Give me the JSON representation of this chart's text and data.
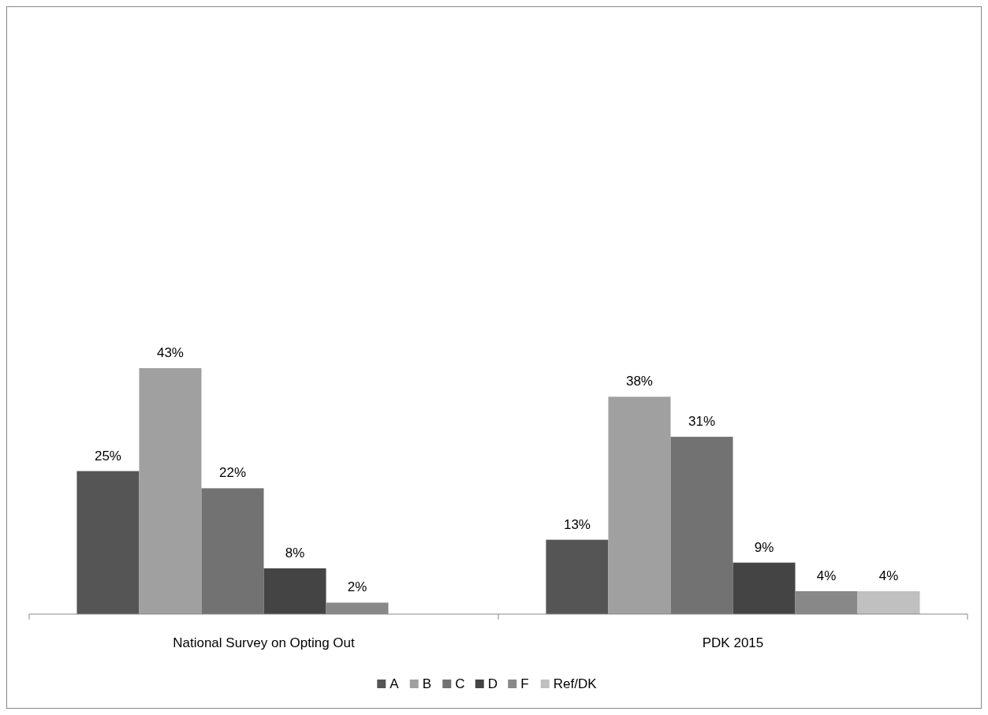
{
  "chart_data": {
    "type": "bar",
    "categories": [
      "National Survey on Opting Out",
      "PDK 2015"
    ],
    "series": [
      {
        "name": "A",
        "color": "#555555",
        "values": [
          25,
          13
        ],
        "value_labels": [
          "25%",
          "13%"
        ]
      },
      {
        "name": "B",
        "color": "#a0a0a0",
        "values": [
          43,
          38
        ],
        "value_labels": [
          "43%",
          "38%"
        ]
      },
      {
        "name": "C",
        "color": "#727272",
        "values": [
          22,
          31
        ],
        "value_labels": [
          "22%",
          "31%"
        ]
      },
      {
        "name": "D",
        "color": "#444444",
        "values": [
          8,
          9
        ],
        "value_labels": [
          "8%",
          "9%"
        ]
      },
      {
        "name": "F",
        "color": "#888888",
        "values": [
          2,
          4
        ],
        "value_labels": [
          "2%",
          "4%"
        ]
      },
      {
        "name": "Ref/DK",
        "color": "#c0c0c0",
        "values": [
          null,
          4
        ],
        "value_labels": [
          null,
          "4%"
        ]
      }
    ],
    "legend": "bottom"
  }
}
